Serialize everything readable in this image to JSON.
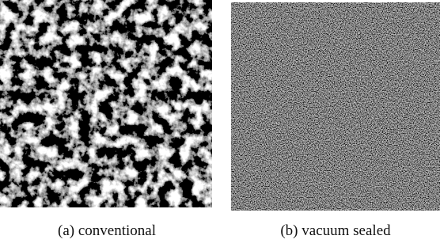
{
  "figure": {
    "panels": [
      {
        "caption": "(a) conventional"
      },
      {
        "caption": "(b) vacuum sealed"
      }
    ]
  }
}
